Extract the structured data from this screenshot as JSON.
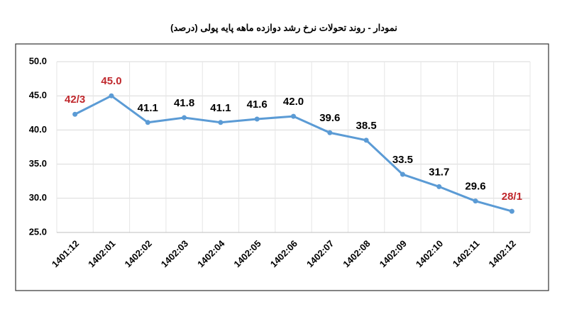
{
  "chart_data": {
    "type": "line",
    "title": "نمودار - روند تحولات نرخ رشد دوازده ماهه پایه پولی (درصد)",
    "categories": [
      "1401:12",
      "1402:01",
      "1402:02",
      "1402:03",
      "1402:04",
      "1402:05",
      "1402:06",
      "1402:07",
      "1402:08",
      "1402:09",
      "1402:10",
      "1402:11",
      "1402:12"
    ],
    "series": [
      {
        "name": null,
        "color": "#5b9bd5",
        "values": [
          42.3,
          45.0,
          41.1,
          41.8,
          41.1,
          41.6,
          42.0,
          39.6,
          38.5,
          33.5,
          31.7,
          29.6,
          28.1
        ],
        "value_labels": [
          "42/3",
          "45.0",
          "41.1",
          "41.8",
          "41.1",
          "41.6",
          "42.0",
          "39.6",
          "38.5",
          "33.5",
          "31.7",
          "29.6",
          "28/1"
        ],
        "label_colors": [
          "#c0282d",
          "#c0282d",
          "#000000",
          "#000000",
          "#000000",
          "#000000",
          "#000000",
          "#000000",
          "#000000",
          "#000000",
          "#000000",
          "#000000",
          "#c0282d"
        ]
      }
    ],
    "ylim": [
      25,
      50
    ],
    "yticks": [
      {
        "value": 25,
        "label": "25.0"
      },
      {
        "value": 30,
        "label": "30.0"
      },
      {
        "value": 35,
        "label": "35.0"
      },
      {
        "value": 40,
        "label": "40.0"
      },
      {
        "value": 45,
        "label": "45.0"
      },
      {
        "value": 50,
        "label": "50.0"
      }
    ],
    "grid": true
  }
}
